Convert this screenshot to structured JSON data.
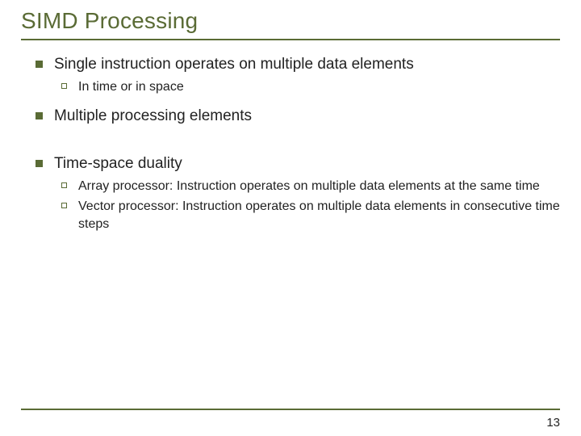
{
  "title": "SIMD Processing",
  "bullets": {
    "b1": "Single instruction operates on multiple data elements",
    "b1a": "In time or in space",
    "b2": "Multiple processing elements",
    "b3": "Time-space duality",
    "b3a_pre": "Array processor",
    "b3a_post": ": Instruction operates on multiple data elements at the same time",
    "b3b_pre": "Vector processor",
    "b3b_post": ": Instruction operates on multiple data elements in consecutive time steps"
  },
  "page_number": "13",
  "colors": {
    "accent": "#5a6b35",
    "text": "#222222",
    "background": "#ffffff"
  }
}
